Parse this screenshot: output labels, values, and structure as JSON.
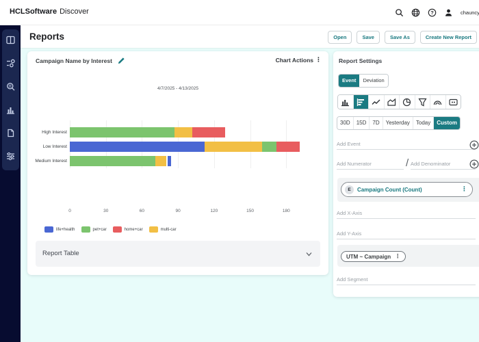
{
  "topbar": {
    "brand_bold": "HCLSoftware",
    "brand_product": "Discover",
    "username": "chauncy."
  },
  "header": {
    "title": "Reports",
    "buttons": [
      "Open",
      "Save",
      "Save As",
      "Create New Report"
    ]
  },
  "sidebar": {
    "icons": [
      "panels",
      "pipeline",
      "search-report",
      "bar-chart",
      "document",
      "sliders"
    ]
  },
  "chart_card": {
    "title": "Campaign Name by Interest",
    "actions_label": "Chart Actions",
    "report_table_label": "Report Table"
  },
  "chart_data": {
    "type": "stacked_bar_horizontal",
    "title": "Campaign Name by Interest",
    "date_range": "4/7/2025 - 4/13/2025",
    "categories": [
      "High Interest",
      "Low Interest",
      "Medium Interest"
    ],
    "series": [
      {
        "name": "life+health",
        "color": "#4A67D3",
        "values": [
          0,
          112,
          3
        ]
      },
      {
        "name": "pet+car",
        "color": "#7CC46E",
        "values": [
          87,
          12,
          71
        ]
      },
      {
        "name": "home+car",
        "color": "#E85D5F",
        "values": [
          27,
          19,
          0
        ]
      },
      {
        "name": "multi-car",
        "color": "#F2BF45",
        "values": [
          15,
          48,
          9
        ]
      }
    ],
    "rows": [
      {
        "label": "High Interest",
        "segments": [
          {
            "series": "pet+car",
            "value": 87
          },
          {
            "series": "multi-car",
            "value": 15
          },
          {
            "series": "home+car",
            "value": 27
          }
        ]
      },
      {
        "label": "Low Interest",
        "segments": [
          {
            "series": "life+health",
            "value": 112
          },
          {
            "series": "multi-car",
            "value": 48
          },
          {
            "series": "pet+car",
            "value": 12
          },
          {
            "series": "home+car",
            "value": 19
          }
        ]
      },
      {
        "label": "Medium Interest",
        "segments": [
          {
            "series": "pet+car",
            "value": 71
          },
          {
            "series": "multi-car",
            "value": 9
          },
          {
            "series": "life+health",
            "value": 3,
            "gap_before": true
          }
        ]
      }
    ],
    "x_ticks": [
      0,
      30,
      60,
      90,
      120,
      150,
      180
    ],
    "xlim": [
      0,
      180
    ],
    "legend": [
      "life+health",
      "pet+car",
      "home+car",
      "multi-car"
    ],
    "legend_position": "bottom",
    "grid": true
  },
  "settings_panel": {
    "title": "Report Settings",
    "mode_tabs": [
      {
        "label": "Event",
        "selected": true
      },
      {
        "label": "Deviation",
        "selected": false
      }
    ],
    "chart_types": [
      {
        "name": "column-chart",
        "selected": false
      },
      {
        "name": "horizontal-bar-chart",
        "selected": true
      },
      {
        "name": "line-chart",
        "selected": false
      },
      {
        "name": "area-chart",
        "selected": false
      },
      {
        "name": "pie-chart",
        "selected": false
      },
      {
        "name": "funnel-chart",
        "selected": false
      },
      {
        "name": "arc-chart",
        "selected": false
      },
      {
        "name": "scorecard",
        "selected": false
      }
    ],
    "time_ranges": [
      {
        "label": "30D",
        "selected": false
      },
      {
        "label": "15D",
        "selected": false
      },
      {
        "label": "7D",
        "selected": false
      },
      {
        "label": "Yesterday",
        "selected": false
      },
      {
        "label": "Today",
        "selected": false
      },
      {
        "label": "Custom",
        "selected": true
      }
    ],
    "add_event_placeholder": "Add Event",
    "add_numerator_placeholder": "Add Numerator",
    "add_denominator_placeholder": "Add Denominator",
    "event_chip": {
      "badge": "E",
      "label": "Campaign Count (Count)"
    },
    "add_x_axis_placeholder": "Add X-Axis",
    "add_y_axis_placeholder": "Add Y-Axis",
    "x_axis_chip": {
      "label": "UTM ~ Campaign"
    },
    "add_segment_placeholder": "Add Segment"
  },
  "colors": {
    "accent_teal": "#1B7B82",
    "teal_text": "#17787F",
    "sidebar_bg": "#070C30",
    "sidebar_group_bg": "#1B2750",
    "content_bg": "#E8FCFA",
    "bar_blue": "#4A67D3",
    "bar_green": "#7CC46E",
    "bar_red": "#E85D5F",
    "bar_yellow": "#F2BF45"
  }
}
